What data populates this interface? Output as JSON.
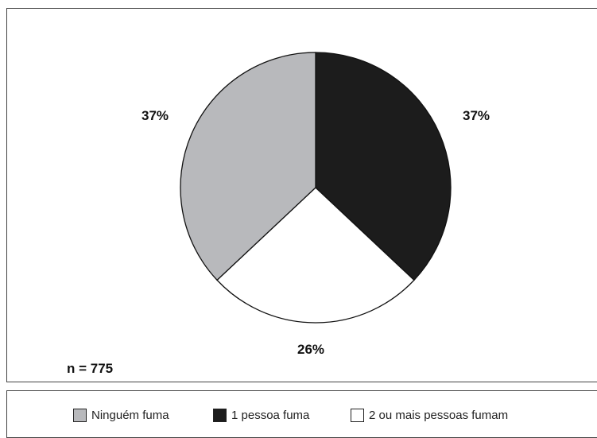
{
  "chart_data": {
    "type": "pie",
    "categories": [
      "Ninguém fuma",
      "1 pessoa fuma",
      "2 ou mais pessoas fumam"
    ],
    "values": [
      37,
      37,
      26
    ],
    "value_labels": [
      "37%",
      "37%",
      "26%"
    ],
    "colors": [
      "#b8b9bc",
      "#1c1c1c",
      "#ffffff"
    ],
    "annotation": "n = 775",
    "legend_position": "bottom"
  }
}
